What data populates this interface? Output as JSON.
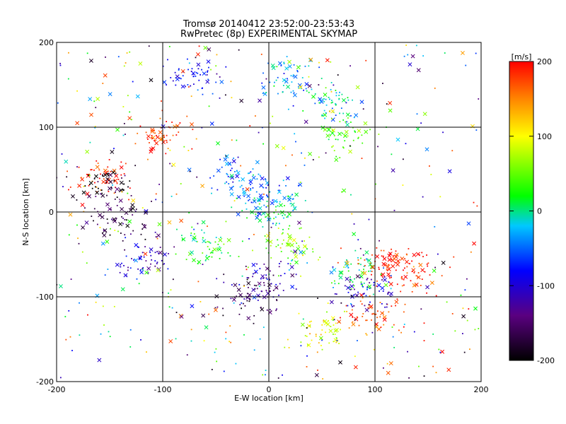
{
  "chart_data": {
    "type": "scatter",
    "title": "Tromsø 20140412 23:52:00-23:53:43",
    "subtitle": "RwPretec (8p) EXPERIMENTAL SKYMAP",
    "xlabel": "E-W location [km]",
    "ylabel": "N-S location [km]",
    "xlim": [
      -200,
      200
    ],
    "ylim": [
      -200,
      200
    ],
    "xticks": [
      -200,
      -100,
      0,
      100,
      200
    ],
    "yticks": [
      -200,
      -100,
      0,
      100,
      200
    ],
    "grid": true,
    "colorbar": {
      "label": "[m/s]",
      "min": -200,
      "max": 200,
      "ticks": [
        200,
        100,
        0,
        -100,
        -200
      ],
      "colormap": "rainbow (black-purple-blue-cyan-green-yellow-red)"
    },
    "clusters": [
      {
        "x": -160,
        "y": 40,
        "value": 190
      },
      {
        "x": -150,
        "y": 30,
        "value": -190
      },
      {
        "x": -140,
        "y": -10,
        "value": -170
      },
      {
        "x": -120,
        "y": -60,
        "value": -110
      },
      {
        "x": -100,
        "y": 90,
        "value": 180
      },
      {
        "x": 20,
        "y": 160,
        "value": -30
      },
      {
        "x": -70,
        "y": 160,
        "value": -80
      },
      {
        "x": 60,
        "y": 130,
        "value": -10
      },
      {
        "x": 70,
        "y": 90,
        "value": 40
      },
      {
        "x": 0,
        "y": 20,
        "value": -40
      },
      {
        "x": 0,
        "y": 0,
        "value": 10
      },
      {
        "x": -30,
        "y": 40,
        "value": -50
      },
      {
        "x": 20,
        "y": -40,
        "value": 60
      },
      {
        "x": 80,
        "y": -70,
        "value": 10
      },
      {
        "x": 140,
        "y": -70,
        "value": 190
      },
      {
        "x": 110,
        "y": -60,
        "value": 185
      },
      {
        "x": 100,
        "y": -120,
        "value": 170
      },
      {
        "x": -20,
        "y": -100,
        "value": -160
      },
      {
        "x": 50,
        "y": -140,
        "value": 90
      },
      {
        "x": 90,
        "y": -90,
        "value": -100
      },
      {
        "x": -60,
        "y": -40,
        "value": 30
      },
      {
        "x": 0,
        "y": -80,
        "value": -120
      }
    ]
  }
}
